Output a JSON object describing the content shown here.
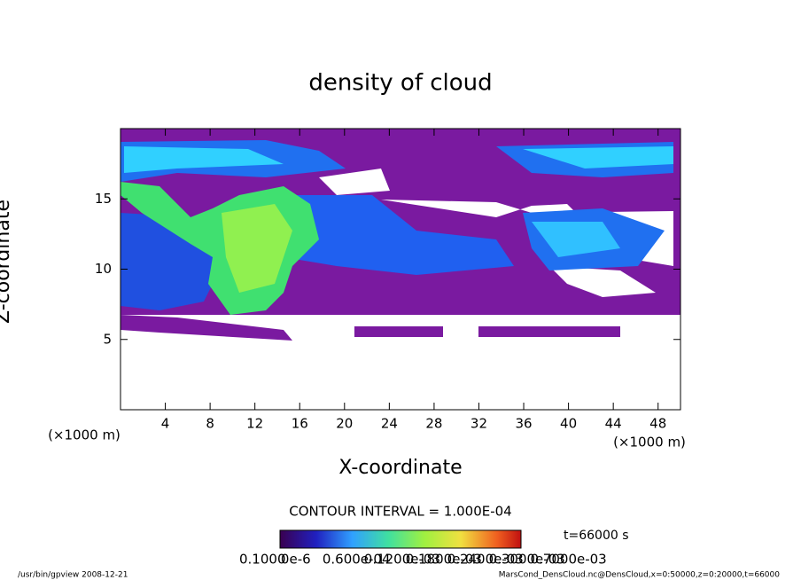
{
  "chart_data": {
    "type": "contour",
    "title": "density of cloud",
    "x_label": "X-coordinate",
    "y_label": "Z-coordinate",
    "x_unit_left": "(×1000 m)",
    "x_unit_right": "(×1000 m)",
    "xlim": [
      0,
      50
    ],
    "ylim": [
      0,
      20
    ],
    "xticks": [
      4,
      8,
      12,
      16,
      20,
      24,
      28,
      32,
      36,
      40,
      44,
      48
    ],
    "yticks": [
      5,
      10,
      15
    ],
    "contour_interval": "CONTOUR INTERVAL = 1.000E-04",
    "time_label": "t=66000 s",
    "colorbar_labels": [
      "0.1000",
      "0e-6",
      "0.600e-04",
      "0.1200e-03",
      "0.1800e-03",
      "0.2400e-03",
      "0.3000e-03",
      "0.7000e-03"
    ],
    "footer_left": "/usr/bin/gpview   2008-12-21",
    "footer_right": "MarsCond_DensCloud.nc@DensCloud,x=0:50000,z=0:20000,t=66000"
  }
}
